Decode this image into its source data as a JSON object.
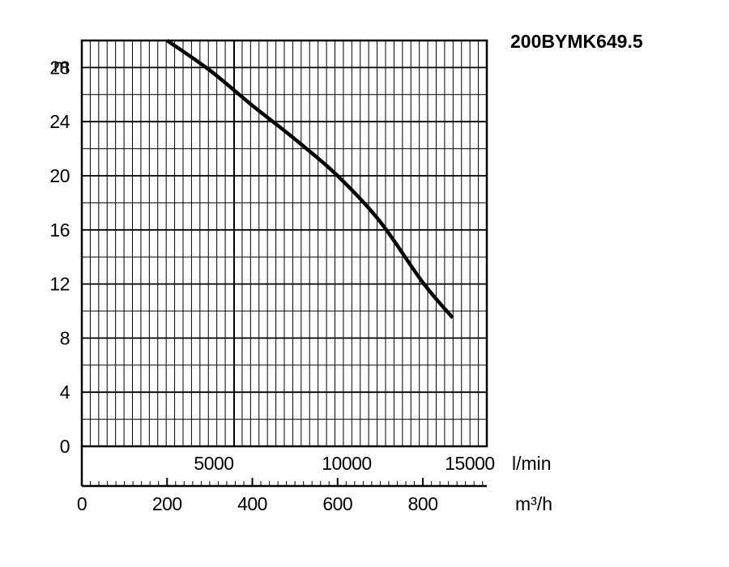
{
  "chart_data": {
    "type": "line",
    "title": "200BYMK649.5",
    "ylabel": "m",
    "ylim": [
      0,
      30
    ],
    "y_ticks": [
      0,
      4,
      8,
      12,
      16,
      20,
      24,
      28
    ],
    "xlabel_primary": "m³/h",
    "xlim_primary": [
      0,
      950
    ],
    "x_ticks_primary": [
      0,
      200,
      400,
      600,
      800
    ],
    "xlabel_secondary": "l/min",
    "x_ticks_secondary": [
      5000,
      10000,
      15000
    ],
    "grid": true,
    "series": [
      {
        "x": [
          200,
          300,
          400,
          500,
          600,
          700,
          800,
          870
        ],
        "y": [
          30,
          27.8,
          25.2,
          22.7,
          20.0,
          16.6,
          12.1,
          9.5
        ]
      }
    ]
  }
}
